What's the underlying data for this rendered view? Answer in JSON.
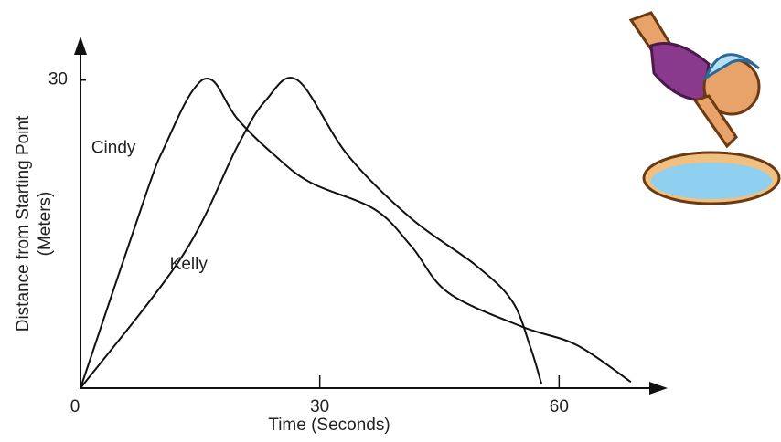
{
  "chart_data": {
    "type": "line",
    "x_label": "Time (Seconds)",
    "y_label": [
      "Distance from Starting Point",
      "(Meters)"
    ],
    "xlim": [
      0,
      72
    ],
    "ylim": [
      0,
      33
    ],
    "xticks": [
      0,
      30,
      60
    ],
    "yticks": [
      30
    ],
    "series": [
      {
        "name": "Cindy",
        "color": "#111111",
        "x": [
          0,
          8.3,
          10.6,
          14,
          16.5,
          19.6,
          24.3,
          28.9,
          36.9,
          41.5,
          46.1,
          55.3,
          62.2,
          69
        ],
        "values": [
          0,
          19.1,
          23.6,
          28.9,
          30,
          26.3,
          22.7,
          20,
          17.4,
          13.8,
          9.3,
          6,
          4.2,
          0.6
        ]
      },
      {
        "name": "Kelly",
        "color": "#111111",
        "x": [
          0,
          12.8,
          19.7,
          23.2,
          27.2,
          33.5,
          41.5,
          49.5,
          54.1,
          56.4,
          57.8
        ],
        "values": [
          0,
          12.9,
          23.6,
          28,
          30,
          22.7,
          16.5,
          12,
          8.5,
          4,
          0.4
        ]
      }
    ]
  }
}
